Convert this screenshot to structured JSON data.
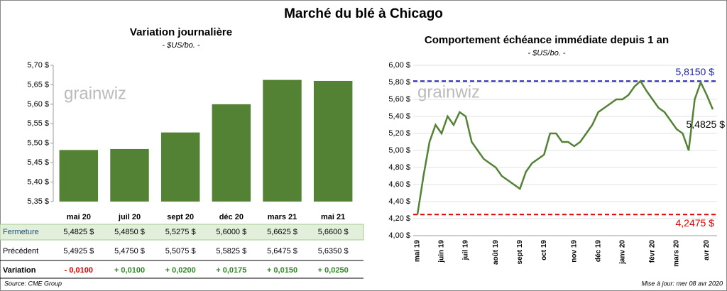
{
  "title": "Marché du blé à Chicago",
  "source": "Source: CME Group",
  "updated": "Mise à jour: mer 08 avr 2020",
  "chart_data": [
    {
      "type": "bar",
      "title": "Variation journalière",
      "subtitle": "- $US/bo. -",
      "watermark": "grainwiz",
      "categories": [
        "mai 20",
        "juil 20",
        "sept 20",
        "déc 20",
        "mars 21",
        "mai 21"
      ],
      "values": [
        5.4825,
        5.485,
        5.5275,
        5.6,
        5.6625,
        5.66
      ],
      "value_labels": [
        "5,4825 $",
        "5,4850 $",
        "5,5275 $",
        "5,6000 $",
        "5,6625 $",
        "5,6600 $"
      ],
      "color": "#548235",
      "row_label": "Fermeture",
      "ylim": [
        5.35,
        5.7
      ],
      "yticks": [
        {
          "value": 5.35,
          "label": "5,35 $"
        },
        {
          "value": 5.4,
          "label": "5,40 $"
        },
        {
          "value": 5.45,
          "label": "5,45 $"
        },
        {
          "value": 5.5,
          "label": "5,50 $"
        },
        {
          "value": 5.55,
          "label": "5,55 $"
        },
        {
          "value": 5.6,
          "label": "5,60 $"
        },
        {
          "value": 5.65,
          "label": "5,65 $"
        },
        {
          "value": 5.7,
          "label": "5,70 $"
        }
      ],
      "table": {
        "rows": [
          {
            "label": "Précédent",
            "values": [
              5.4925,
              5.475,
              5.5075,
              5.5825,
              5.6475,
              5.635
            ],
            "value_labels": [
              "5,4925 $",
              "5,4750 $",
              "5,5075 $",
              "5,5825 $",
              "5,6475 $",
              "5,6350 $"
            ]
          },
          {
            "label": "Variation",
            "values": [
              -0.01,
              0.01,
              0.02,
              0.0175,
              0.015,
              0.025
            ],
            "value_labels": [
              "- 0,0100",
              "+ 0,0100",
              "+ 0,0200",
              "+ 0,0175",
              "+ 0,0150",
              "+ 0,0250"
            ],
            "positive_color": "#2e8b22",
            "negative_color": "#e00000"
          }
        ]
      }
    },
    {
      "type": "line",
      "title": "Comportement  échéance immédiate depuis 1 an",
      "subtitle": "- $US/bo. -",
      "watermark": "grainwiz",
      "categories": [
        "mai 19",
        null,
        null,
        null,
        "juin 19",
        null,
        null,
        null,
        "juil 19",
        null,
        null,
        null,
        null,
        "août 19",
        null,
        null,
        null,
        "sept 19",
        null,
        null,
        null,
        "oct 19",
        null,
        null,
        null,
        null,
        "nov 19",
        null,
        null,
        null,
        "déc 19",
        null,
        null,
        null,
        "janv 20",
        null,
        null,
        null,
        null,
        "févr 20",
        null,
        null,
        null,
        "mars 20",
        null,
        null,
        null,
        null,
        "avr 20",
        null
      ],
      "series": [
        {
          "name": "Échéance immédiate",
          "color": "#548235",
          "values": [
            4.2475,
            4.7,
            5.1,
            5.3,
            5.2,
            5.4,
            5.3,
            5.45,
            5.4,
            5.1,
            5.0,
            4.9,
            4.85,
            4.8,
            4.7,
            4.65,
            4.6,
            4.55,
            4.75,
            4.85,
            4.9,
            4.95,
            5.2,
            5.2,
            5.1,
            5.1,
            5.05,
            5.1,
            5.2,
            5.3,
            5.45,
            5.5,
            5.55,
            5.6,
            5.6,
            5.65,
            5.75,
            5.815,
            5.7,
            5.6,
            5.5,
            5.45,
            5.35,
            5.25,
            5.2,
            5.0,
            5.6,
            5.8,
            5.65,
            5.4825
          ],
          "last_label": "5,4825 $"
        }
      ],
      "lines": [
        {
          "value": 5.815,
          "label": "5,8150 $",
          "color": "#2020b0"
        },
        {
          "value": 4.2475,
          "label": "4,2475 $",
          "color": "#e00000"
        }
      ],
      "ylim": [
        4.0,
        6.0
      ],
      "yticks": [
        {
          "value": 4.0,
          "label": "4,00 $"
        },
        {
          "value": 4.2,
          "label": "4,20 $"
        },
        {
          "value": 4.4,
          "label": "4,40 $"
        },
        {
          "value": 4.6,
          "label": "4,60 $"
        },
        {
          "value": 4.8,
          "label": "4,80 $"
        },
        {
          "value": 5.0,
          "label": "5,00 $"
        },
        {
          "value": 5.2,
          "label": "5,20 $"
        },
        {
          "value": 5.4,
          "label": "5,40 $"
        },
        {
          "value": 5.6,
          "label": "5,60 $"
        },
        {
          "value": 5.8,
          "label": "5,80 $"
        },
        {
          "value": 6.0,
          "label": "6,00 $"
        }
      ],
      "grid": true
    }
  ]
}
